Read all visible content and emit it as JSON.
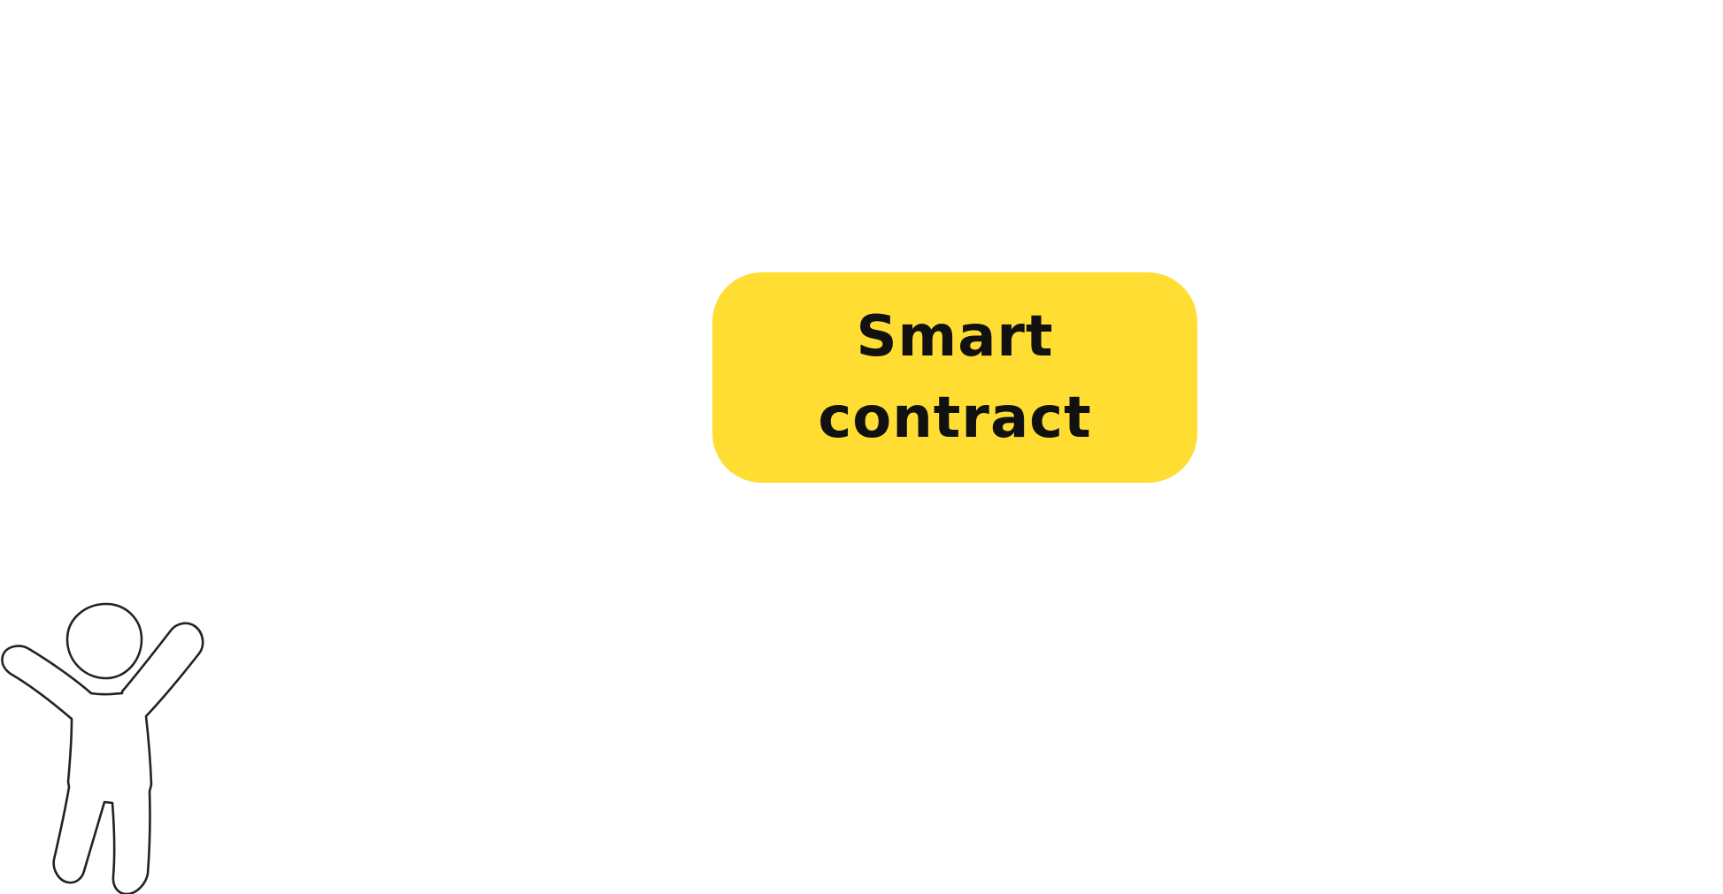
{
  "contract": {
    "line1": "Smart",
    "line2": "contract"
  },
  "person": {
    "icon": "person-arms-raised-icon"
  },
  "colors": {
    "box": "#FFDD33",
    "text": "#111111",
    "outline": "#222222",
    "background": "#FFFFFF"
  }
}
